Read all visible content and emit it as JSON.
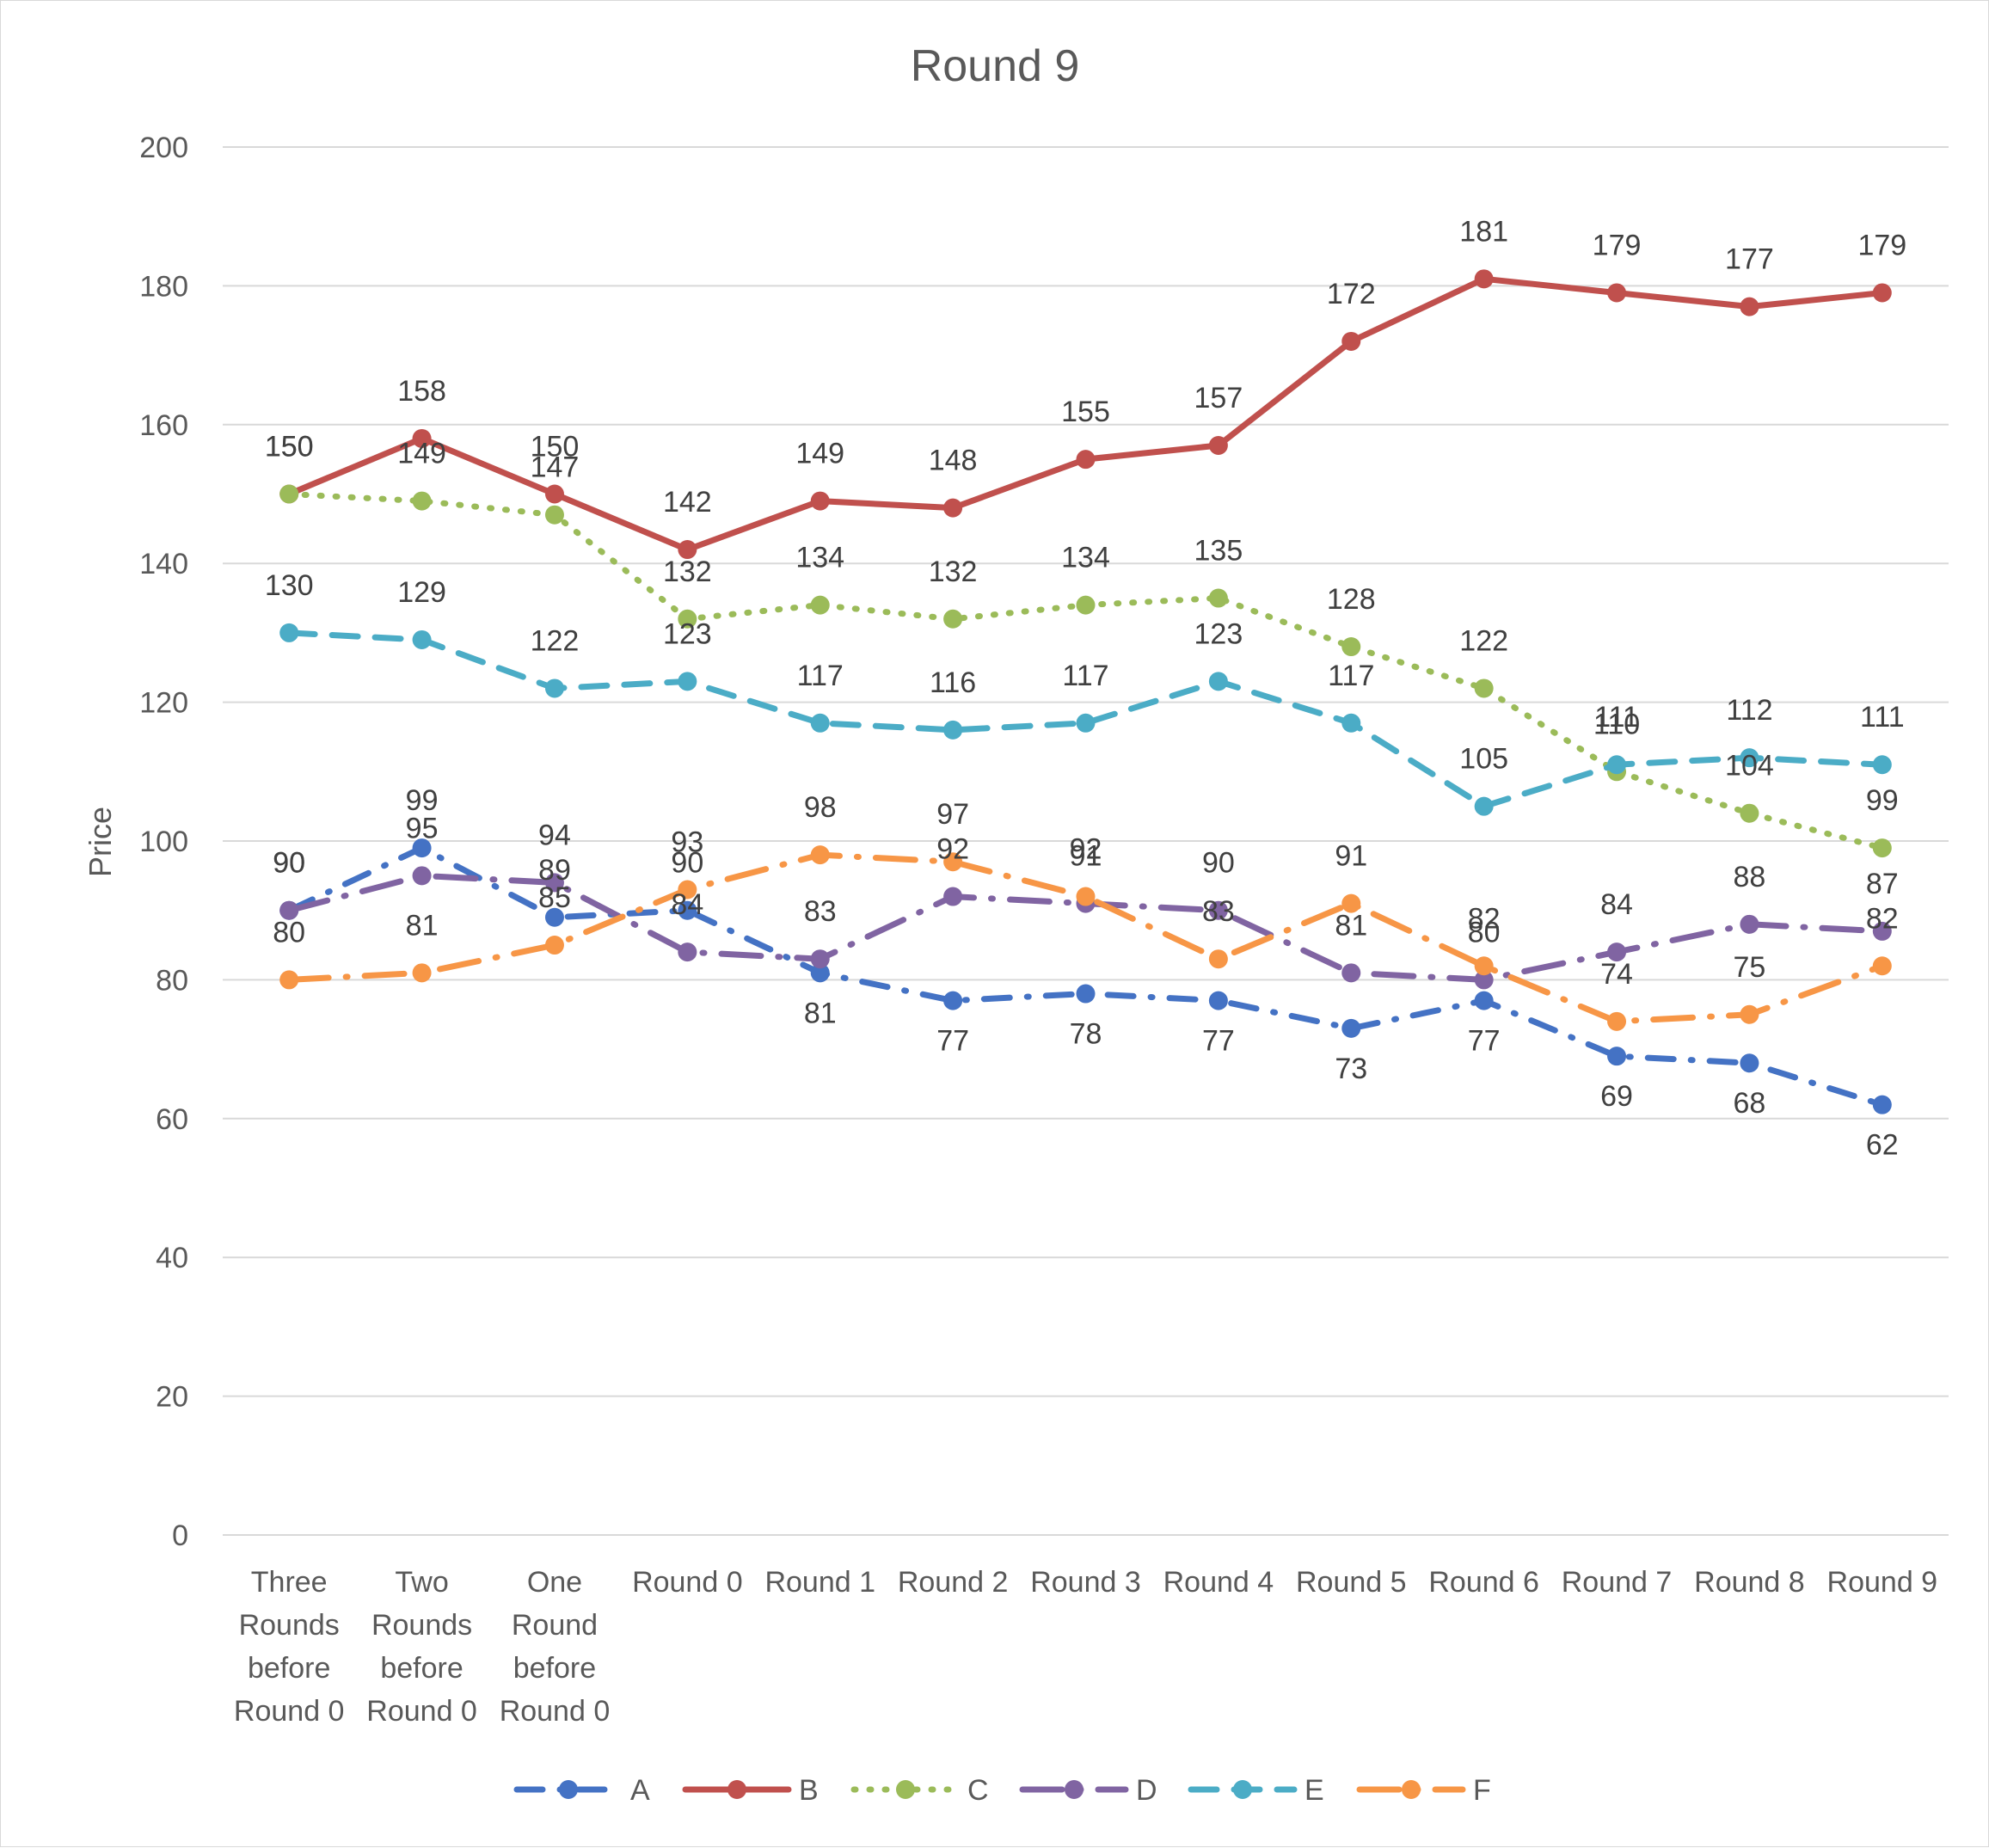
{
  "chart_data": {
    "type": "line",
    "title": "Round 9",
    "xlabel": "",
    "ylabel": "Price",
    "ylim": [
      0,
      200
    ],
    "yticks": [
      0,
      20,
      40,
      60,
      80,
      100,
      120,
      140,
      160,
      180,
      200
    ],
    "grid": "horizontal",
    "legend_position": "bottom",
    "categories": [
      "Three Rounds before Round 0",
      "Two Rounds before Round 0",
      "One Round before Round 0",
      "Round 0",
      "Round 1",
      "Round 2",
      "Round 3",
      "Round 4",
      "Round 5",
      "Round 6",
      "Round 7",
      "Round 8",
      "Round 9"
    ],
    "category_lines": [
      [
        "Three",
        "Rounds",
        "before",
        "Round 0"
      ],
      [
        "Two",
        "Rounds",
        "before",
        "Round 0"
      ],
      [
        "One",
        "Round",
        "before",
        "Round 0"
      ],
      [
        "Round 0"
      ],
      [
        "Round 1"
      ],
      [
        "Round 2"
      ],
      [
        "Round 3"
      ],
      [
        "Round 4"
      ],
      [
        "Round 5"
      ],
      [
        "Round 6"
      ],
      [
        "Round 7"
      ],
      [
        "Round 8"
      ],
      [
        "Round 9"
      ]
    ],
    "series": [
      {
        "name": "A",
        "color": "#4472C4",
        "dash": "dash-dot",
        "values": [
          90,
          99,
          89,
          90,
          81,
          77,
          78,
          77,
          73,
          77,
          69,
          68,
          62
        ]
      },
      {
        "name": "B",
        "color": "#C0504D",
        "dash": "solid",
        "values": [
          150,
          158,
          150,
          142,
          149,
          148,
          155,
          157,
          172,
          181,
          179,
          177,
          179
        ]
      },
      {
        "name": "C",
        "color": "#9BBB59",
        "dash": "dot",
        "values": [
          150,
          149,
          147,
          132,
          134,
          132,
          134,
          135,
          128,
          122,
          110,
          104,
          99
        ]
      },
      {
        "name": "D",
        "color": "#8064A2",
        "dash": "long-dash-dot",
        "values": [
          90,
          95,
          94,
          84,
          83,
          92,
          91,
          90,
          81,
          80,
          84,
          88,
          87
        ]
      },
      {
        "name": "E",
        "color": "#4BACC6",
        "dash": "dash",
        "values": [
          130,
          129,
          122,
          123,
          117,
          116,
          117,
          123,
          117,
          105,
          111,
          112,
          111
        ]
      },
      {
        "name": "F",
        "color": "#F79646",
        "dash": "long-dash-dot",
        "values": [
          80,
          81,
          85,
          93,
          98,
          97,
          92,
          83,
          91,
          82,
          74,
          75,
          82
        ]
      }
    ]
  }
}
